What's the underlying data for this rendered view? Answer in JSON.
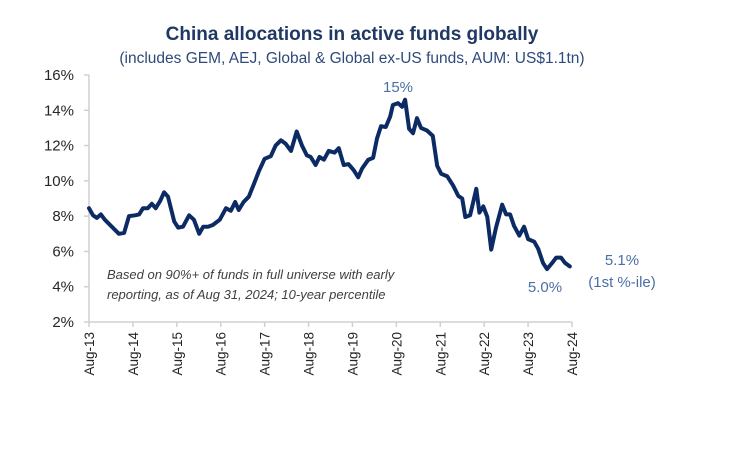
{
  "chart_data": {
    "type": "line",
    "title": "China allocations in active funds globally",
    "subtitle": "(includes GEM, AEJ, Global & Global ex-US  funds, AUM:  US$1.1tn)",
    "xlabel": "",
    "ylabel": "",
    "ylim": [
      2,
      16
    ],
    "yticks": [
      2,
      4,
      6,
      8,
      10,
      12,
      14,
      16
    ],
    "ytick_labels": [
      "2%",
      "4%",
      "6%",
      "8%",
      "10%",
      "12%",
      "14%",
      "16%"
    ],
    "xlim_years_since_aug13": [
      0,
      11
    ],
    "xtick_labels": [
      "Aug-13",
      "Aug-14",
      "Aug-15",
      "Aug-16",
      "Aug-17",
      "Aug-18",
      "Aug-19",
      "Aug-20",
      "Aug-21",
      "Aug-22",
      "Aug-23",
      "Aug-24"
    ],
    "grid": false,
    "legend": "none",
    "series": [
      {
        "name": "China allocation (%)",
        "color": "#0c2a63",
        "x_years_since_aug13": [
          0,
          0.09,
          0.18,
          0.27,
          0.36,
          0.52,
          0.68,
          0.8,
          0.91,
          1.05,
          1.14,
          1.23,
          1.34,
          1.43,
          1.52,
          1.62,
          1.71,
          1.8,
          1.94,
          2.03,
          2.14,
          2.28,
          2.39,
          2.51,
          2.6,
          2.71,
          2.82,
          2.98,
          3.12,
          3.23,
          3.33,
          3.41,
          3.52,
          3.64,
          3.76,
          3.87,
          4.0,
          4.14,
          4.25,
          4.37,
          4.48,
          4.6,
          4.73,
          4.85,
          4.96,
          5.05,
          5.16,
          5.25,
          5.35,
          5.46,
          5.59,
          5.69,
          5.8,
          5.91,
          6.03,
          6.13,
          6.22,
          6.36,
          6.47,
          6.56,
          6.65,
          6.76,
          6.86,
          6.92,
          7.04,
          7.13,
          7.2,
          7.29,
          7.38,
          7.47,
          7.56,
          7.7,
          7.83,
          7.93,
          8.02,
          8.16,
          8.29,
          8.41,
          8.5,
          8.57,
          8.68,
          8.82,
          8.89,
          8.98,
          9.07,
          9.16,
          9.27,
          9.41,
          9.5,
          9.59,
          9.68,
          9.8,
          9.91,
          10.0,
          10.14,
          10.23,
          10.34,
          10.43,
          10.55,
          10.64,
          10.75,
          10.84,
          10.95
        ],
        "values": [
          8.45,
          8.05,
          7.9,
          8.1,
          7.8,
          7.4,
          7.0,
          7.05,
          8.0,
          8.05,
          8.1,
          8.45,
          8.45,
          8.7,
          8.45,
          8.85,
          9.35,
          9.1,
          7.7,
          7.35,
          7.4,
          8.05,
          7.8,
          7.0,
          7.4,
          7.4,
          7.5,
          7.8,
          8.45,
          8.3,
          8.8,
          8.35,
          8.8,
          9.1,
          9.85,
          10.55,
          11.25,
          11.4,
          12.0,
          12.3,
          12.1,
          11.7,
          12.8,
          12.0,
          11.45,
          11.35,
          10.9,
          11.35,
          11.2,
          11.7,
          11.6,
          11.85,
          10.9,
          10.95,
          10.6,
          10.2,
          10.7,
          11.2,
          11.3,
          12.4,
          13.1,
          13.05,
          13.65,
          14.3,
          14.4,
          14.2,
          14.6,
          12.95,
          12.7,
          13.55,
          13.0,
          12.85,
          12.55,
          10.85,
          10.4,
          10.25,
          9.75,
          9.15,
          9.0,
          7.95,
          8.05,
          9.55,
          8.2,
          8.55,
          7.95,
          6.1,
          7.35,
          8.65,
          8.1,
          8.1,
          7.45,
          6.9,
          7.4,
          6.7,
          6.55,
          6.15,
          5.35,
          5.0,
          5.35,
          5.65,
          5.65,
          5.35,
          5.15
        ]
      }
    ],
    "annotations": {
      "peak": "15%",
      "latest_value": "5.1%",
      "latest_percentile": "(1st %-ile)",
      "low": "5.0%",
      "note_line1": "Based on 90%+ of funds in full universe with early",
      "note_line2": "reporting, as of Aug 31, 2024; 10-year percentile"
    }
  }
}
